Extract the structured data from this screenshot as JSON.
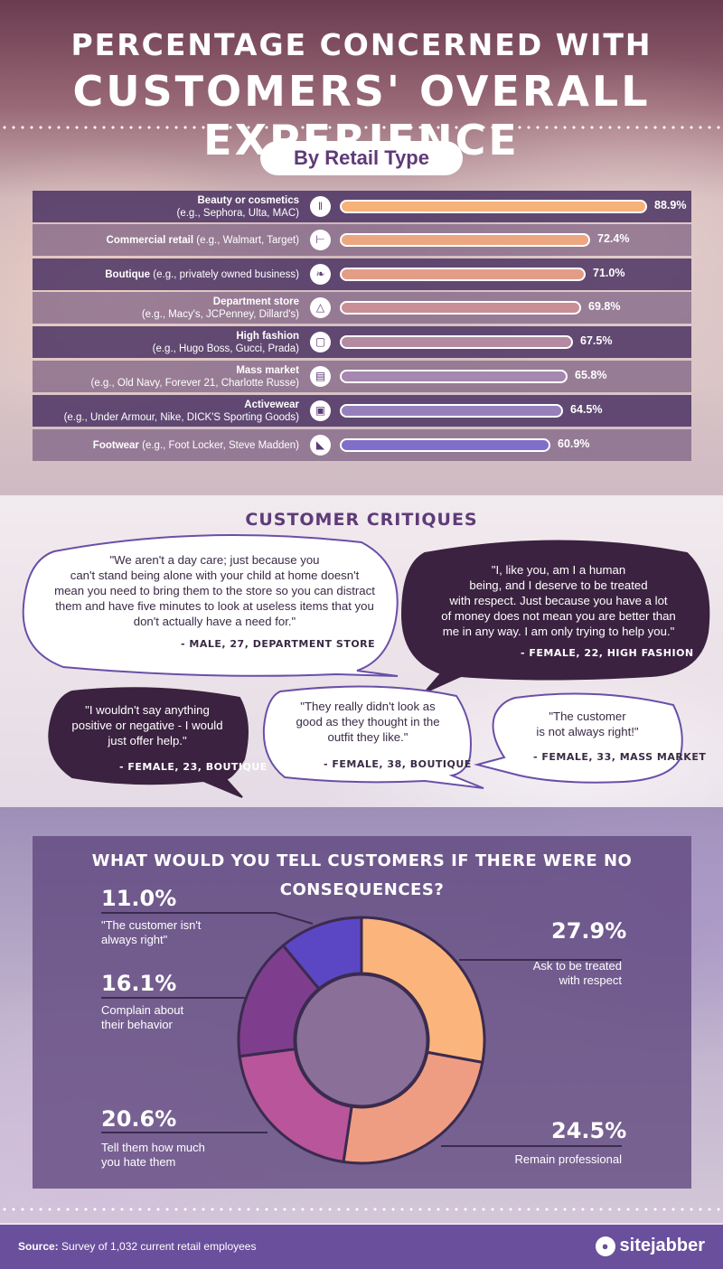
{
  "header": {
    "title_line1": "PERCENTAGE CONCERNED WITH",
    "title_line2": "CUSTOMERS' OVERALL EXPERIENCE",
    "subtitle_pill": "By Retail Type"
  },
  "chart_data": [
    {
      "type": "bar",
      "orientation": "horizontal",
      "title": "By Retail Type",
      "categories": [
        {
          "name": "Beauty or cosmetics",
          "detail": "(e.g., Sephora, Ulta, MAC)",
          "icon": "lipstick-icon",
          "glyph": "‖"
        },
        {
          "name": "Commercial retail",
          "detail": "(e.g., Walmart, Target)",
          "icon": "cart-icon",
          "glyph": "⊢"
        },
        {
          "name": "Boutique",
          "detail": "(e.g., privately owned business)",
          "icon": "bow-icon",
          "glyph": "❧"
        },
        {
          "name": "Department store",
          "detail": "(e.g., Macy's, JCPenney, Dillard's)",
          "icon": "hanger-icon",
          "glyph": "△"
        },
        {
          "name": "High fashion",
          "detail": "(e.g., Hugo Boss, Gucci, Prada)",
          "icon": "shopping-bag-icon",
          "glyph": "▢"
        },
        {
          "name": "Mass market",
          "detail": "(e.g., Old Navy, Forever 21, Charlotte Russe)",
          "icon": "storefront-icon",
          "glyph": "▤"
        },
        {
          "name": "Activewear",
          "detail": "(e.g., Under Armour, Nike, DICK'S Sporting Goods)",
          "icon": "shorts-icon",
          "glyph": "▣"
        },
        {
          "name": "Footwear",
          "detail": "(e.g., Foot Locker, Steve Madden)",
          "icon": "shoe-icon",
          "glyph": "◣"
        }
      ],
      "values": [
        88.9,
        72.4,
        71.0,
        69.8,
        67.5,
        65.8,
        64.5,
        60.9
      ],
      "value_labels": [
        "88.9%",
        "72.4%",
        "71.0%",
        "69.8%",
        "67.5%",
        "65.8%",
        "64.5%",
        "60.9%"
      ],
      "bar_colors": [
        "#f7b27a",
        "#eca781",
        "#e39d87",
        "#c98f96",
        "#b48aa2",
        "#a587b0",
        "#9680bb",
        "#7f6fc9"
      ],
      "xlim": [
        0,
        100
      ]
    },
    {
      "type": "pie",
      "variant": "donut",
      "title": "WHAT WOULD YOU TELL CUSTOMERS IF THERE WERE NO CONSEQUENCES?",
      "slices": [
        {
          "label": "Ask to be treated with respect",
          "value": 27.9,
          "pct": "27.9%",
          "color": "#fbb57c"
        },
        {
          "label": "Remain professional",
          "value": 24.5,
          "pct": "24.5%",
          "color": "#ef9d82"
        },
        {
          "label": "Tell them how much you hate them",
          "value": 20.6,
          "pct": "20.6%",
          "color": "#b9559a"
        },
        {
          "label": "Complain about their behavior",
          "value": 16.1,
          "pct": "16.1%",
          "color": "#7e3e8d"
        },
        {
          "label": "\"The customer isn't always right\"",
          "value": 11.0,
          "pct": "11.0%",
          "color": "#5b47c4"
        }
      ]
    }
  ],
  "critiques": {
    "title": "CUSTOMER CRITIQUES",
    "quotes": [
      {
        "lines": [
          "\"We aren't a day care; just because you",
          "can't stand being alone with your child at home doesn't",
          "mean you need to bring them to the store so you can distract",
          "them and have five minutes to look at useless items that you",
          "don't actually have a need for.\""
        ],
        "attribution": "- MALE, 27, DEPARTMENT STORE"
      },
      {
        "lines": [
          "\"I, like you, am I a human",
          "being, and I deserve  to be treated",
          "with respect. Just because you have a lot",
          "of money does not mean you are better than",
          "me in any way. I am only trying to help you.\""
        ],
        "attribution": "- FEMALE, 22, HIGH FASHION"
      },
      {
        "lines": [
          "\"I wouldn't say anything",
          "positive  or negative - I would",
          "just offer help.\""
        ],
        "attribution": "-  FEMALE, 23, BOUTIQUE"
      },
      {
        "lines": [
          "\"They really didn't look as",
          "good as they  thought in the",
          "outfit they like.\""
        ],
        "attribution": "-  FEMALE, 38, BOUTIQUE"
      },
      {
        "lines": [
          "\"The customer",
          "is not always right!\""
        ],
        "attribution": "-  FEMALE, 33, MASS MARKET"
      }
    ]
  },
  "donut_labels": {
    "respect": {
      "pct": "27.9%",
      "lines": [
        "Ask to be treated",
        "with respect"
      ]
    },
    "professional": {
      "pct": "24.5%",
      "lines": [
        "Remain professional"
      ]
    },
    "hate": {
      "pct": "20.6%",
      "lines": [
        "Tell them how much",
        "you hate them"
      ]
    },
    "complain": {
      "pct": "16.1%",
      "lines": [
        "Complain about",
        "their behavior"
      ]
    },
    "notright": {
      "pct": "11.0%",
      "lines": [
        "\"The customer isn't",
        "always right\""
      ]
    }
  },
  "footer": {
    "source_label": "Source:",
    "source_text": " Survey of 1,032 current retail employees",
    "brand": "sitejabber",
    "brand_icon": "sitejabber-logo-icon"
  },
  "colors": {
    "purple_dark": "#4a2f66",
    "purple_brand": "#6a4f9c",
    "bubble_outline": "#6a4fa8"
  }
}
